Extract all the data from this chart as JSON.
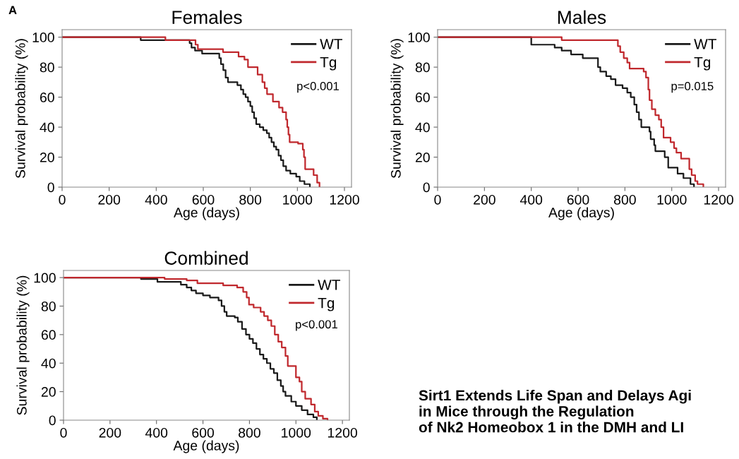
{
  "chart_data": [
    {
      "type": "step",
      "title": "Females",
      "xlabel": "Age (days)",
      "ylabel": "Survival probability (%)",
      "xlim": [
        0,
        1230
      ],
      "ylim": [
        0,
        105
      ],
      "xticks": [
        0,
        200,
        400,
        600,
        800,
        1000,
        1200
      ],
      "yticks": [
        0,
        20,
        40,
        60,
        80,
        100
      ],
      "grid": false,
      "legend": "top right",
      "marker": "none",
      "line_style": "solid",
      "annotations": [
        "p<0.001",
        "A"
      ],
      "series": [
        {
          "name": "WT",
          "color": "#1a1a1a",
          "x": [
            0,
            334,
            542,
            550,
            565,
            595,
            668,
            675,
            685,
            695,
            705,
            745,
            760,
            770,
            780,
            790,
            800,
            808,
            816,
            825,
            840,
            855,
            870,
            880,
            890,
            900,
            910,
            920,
            930,
            940,
            952,
            970,
            995,
            1010,
            1030,
            1053
          ],
          "values": [
            100,
            98,
            96,
            93,
            91,
            89,
            86,
            82,
            78,
            73,
            70,
            68,
            65,
            62,
            60,
            57,
            54,
            50,
            46,
            42,
            40,
            38,
            36,
            33,
            30,
            27,
            25,
            21,
            18,
            14,
            11,
            9,
            7,
            4,
            2,
            0
          ]
        },
        {
          "name": "Tg",
          "color": "#c0282d",
          "x": [
            0,
            439,
            567,
            577,
            684,
            750,
            775,
            790,
            831,
            851,
            861,
            871,
            896,
            922,
            937,
            952,
            957,
            962,
            967,
            1003,
            1023,
            1028,
            1033,
            1069,
            1084,
            1094
          ],
          "values": [
            100,
            98,
            95,
            92,
            90,
            87,
            85,
            80,
            75,
            70,
            66,
            62,
            57,
            53,
            50,
            45,
            40,
            35,
            30,
            29,
            25,
            20,
            12,
            8,
            3,
            0
          ]
        }
      ]
    },
    {
      "type": "step",
      "title": "Males",
      "xlabel": "Age (days)",
      "ylabel": "Survival probability (%)",
      "xlim": [
        0,
        1230
      ],
      "ylim": [
        0,
        105
      ],
      "xticks": [
        0,
        200,
        400,
        600,
        800,
        1000,
        1200
      ],
      "yticks": [
        0,
        20,
        40,
        60,
        80,
        100
      ],
      "grid": false,
      "legend": "top right",
      "marker": "none",
      "line_style": "solid",
      "annotations": [
        "p=0.015"
      ],
      "series": [
        {
          "name": "WT",
          "color": "#1a1a1a",
          "x": [
            0,
            400,
            500,
            530,
            570,
            620,
            685,
            695,
            720,
            740,
            760,
            790,
            810,
            825,
            840,
            850,
            860,
            870,
            905,
            910,
            925,
            930,
            970,
            985,
            1025,
            1050,
            1080,
            1095
          ],
          "values": [
            100,
            95,
            93,
            91,
            88.5,
            86,
            80,
            77,
            74,
            72,
            68,
            66,
            63,
            60,
            55,
            50,
            45,
            40,
            37,
            32,
            28,
            24,
            20,
            13,
            9,
            6,
            2,
            0
          ]
        },
        {
          "name": "Tg",
          "color": "#c0282d",
          "x": [
            0,
            530,
            770,
            780,
            795,
            810,
            820,
            880,
            890,
            900,
            905,
            915,
            930,
            945,
            955,
            965,
            995,
            1010,
            1020,
            1040,
            1075,
            1085,
            1100,
            1110,
            1135
          ],
          "values": [
            100,
            98,
            94,
            90,
            86,
            83,
            79,
            77,
            73,
            65,
            58,
            52,
            48,
            45,
            40,
            33,
            30,
            26,
            23,
            19,
            12,
            8,
            4,
            2,
            0
          ]
        }
      ]
    },
    {
      "type": "step",
      "title": "Combined",
      "xlabel": "Age (days)",
      "ylabel": "Survival probability (%)",
      "xlim": [
        0,
        1230
      ],
      "ylim": [
        0,
        105
      ],
      "xticks": [
        0,
        200,
        400,
        600,
        800,
        1000,
        1200
      ],
      "yticks": [
        0,
        20,
        40,
        60,
        80,
        100
      ],
      "grid": false,
      "legend": "top right",
      "marker": "none",
      "line_style": "solid",
      "annotations": [
        "p<0.001",
        "Sirt1 Extends Life Span and Delays Agi\nin Mice through the Regulation\nof Nk2 Homeobox 1 in the DMH and LI"
      ],
      "series": [
        {
          "name": "WT",
          "color": "#1a1a1a",
          "x": [
            0,
            333,
            404,
            505,
            530,
            550,
            570,
            600,
            630,
            667,
            680,
            692,
            702,
            737,
            750,
            768,
            785,
            800,
            815,
            830,
            845,
            860,
            875,
            890,
            905,
            920,
            935,
            945,
            955,
            980,
            1000,
            1025,
            1050,
            1075,
            1090
          ],
          "values": [
            100,
            99,
            97,
            95,
            93,
            91,
            89,
            87.5,
            86,
            84,
            80,
            76,
            73,
            72,
            69,
            64,
            60,
            57,
            54,
            50,
            46,
            43,
            40,
            36,
            33,
            28,
            24,
            20,
            17,
            13,
            10,
            7,
            4,
            2,
            0
          ]
        },
        {
          "name": "Tg",
          "color": "#c0282d",
          "x": [
            0,
            435,
            530,
            576,
            687,
            747,
            773,
            788,
            798,
            818,
            848,
            863,
            879,
            894,
            909,
            924,
            939,
            955,
            965,
            1000,
            1015,
            1025,
            1040,
            1065,
            1081,
            1096,
            1116,
            1136
          ],
          "values": [
            100,
            99,
            98,
            96,
            94.5,
            93,
            90,
            86,
            81,
            79,
            76,
            73,
            70,
            66,
            60,
            55,
            51,
            45,
            38,
            30,
            27,
            20,
            15,
            11,
            6,
            3,
            1,
            0
          ]
        }
      ]
    }
  ]
}
